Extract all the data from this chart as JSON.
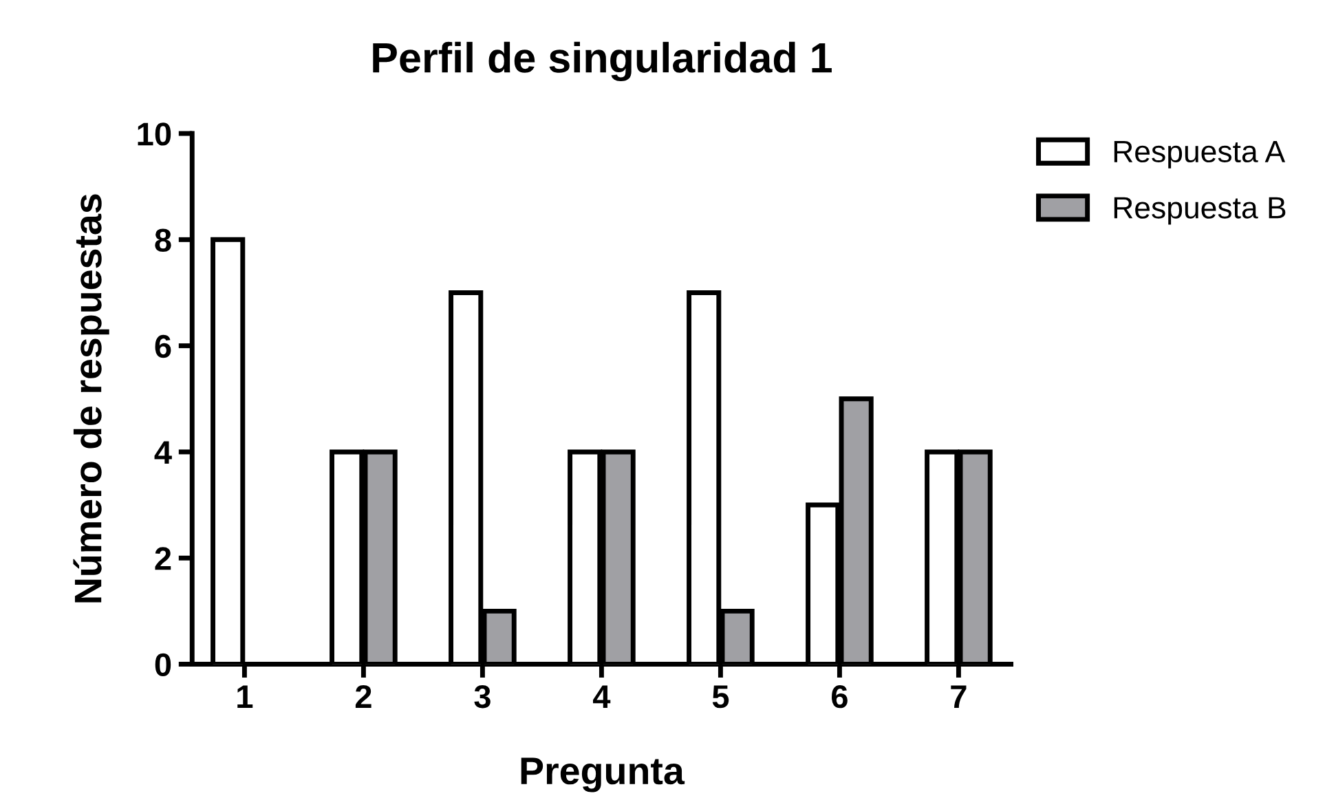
{
  "chart_data": {
    "type": "bar",
    "title": "Perfil de singularidad 1",
    "xlabel": "Pregunta",
    "ylabel": "Número de respuestas",
    "categories": [
      "1",
      "2",
      "3",
      "4",
      "5",
      "6",
      "7"
    ],
    "series": [
      {
        "name": "Respuesta A",
        "color": "#ffffff",
        "values": [
          8,
          4,
          7,
          4,
          7,
          3,
          4
        ]
      },
      {
        "name": "Respuesta B",
        "color": "#a0a0a4",
        "values": [
          null,
          4,
          1,
          4,
          1,
          5,
          4
        ]
      }
    ],
    "ylim": [
      0,
      10
    ],
    "yticks": [
      0,
      2,
      4,
      6,
      8,
      10
    ],
    "grid": false,
    "legend": "top right"
  }
}
